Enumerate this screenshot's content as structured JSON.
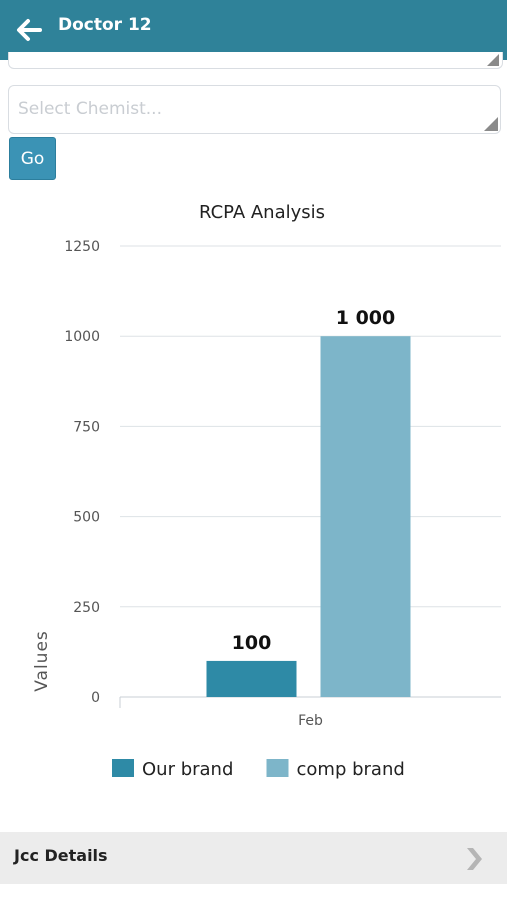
{
  "header": {
    "title": "Doctor 12",
    "back_icon": "arrow-left-icon",
    "background": "#2f8299"
  },
  "chemist_select": {
    "placeholder": "Select Chemist..."
  },
  "go_button": {
    "label": "Go"
  },
  "chart_data": {
    "type": "bar",
    "title": "RCPA Analysis",
    "ylabel": "Values",
    "xlabel": "",
    "categories": [
      "Feb"
    ],
    "series": [
      {
        "name": "Our brand",
        "values": [
          100
        ],
        "label": "100",
        "color": "#2e8aa6"
      },
      {
        "name": "comp brand",
        "values": [
          1000
        ],
        "label": "1 000",
        "color": "#7db5c9"
      }
    ],
    "ylim": [
      0,
      1250
    ],
    "yticks": [
      0,
      250,
      500,
      750,
      1000,
      1250
    ],
    "grid": true,
    "legend": "bottom"
  },
  "jcc": {
    "label": "Jcc Details",
    "chevron_icon": "chevron-right-icon"
  }
}
